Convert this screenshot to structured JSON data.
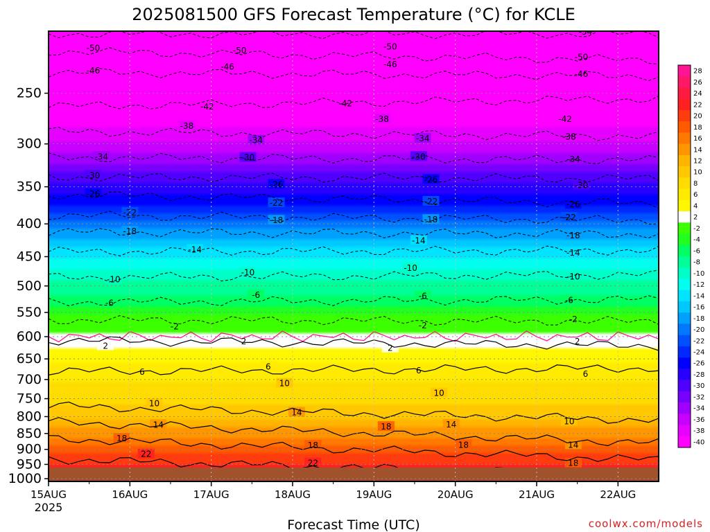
{
  "chart_data": {
    "type": "heatmap",
    "title": "2025081500 GFS Forecast Temperature (°C) for KCLE",
    "xlabel": "Forecast Time (UTC)",
    "ylabel": "",
    "credit": "coolwx.com/models",
    "x_ticks": [
      "15AUG",
      "16AUG",
      "17AUG",
      "18AUG",
      "19AUG",
      "20AUG",
      "21AUG",
      "22AUG"
    ],
    "x_year_label": "2025",
    "y_scale": "log",
    "y_ticks": [
      250,
      300,
      350,
      400,
      450,
      500,
      550,
      600,
      650,
      700,
      750,
      800,
      850,
      900,
      950,
      1000
    ],
    "ylim": [
      1010,
      200
    ],
    "xlim_days": [
      0,
      7.5
    ],
    "grid": true,
    "colorbar": {
      "placement": "right",
      "labels_top": [
        "28",
        "26",
        "24",
        "22",
        "20",
        "18",
        "16",
        "14",
        "12",
        "10",
        "8",
        "6",
        "4",
        "2"
      ],
      "labels_bottom": [
        "-2",
        "-4",
        "-6",
        "-8",
        "-10",
        "-12",
        "-14",
        "-16",
        "-18",
        "-20",
        "-22",
        "-24",
        "-26",
        "-28",
        "-30",
        "-32",
        "-34",
        "-36",
        "-38",
        "-40"
      ],
      "colors_top": [
        "#ff1493",
        "#ff1868",
        "#ff1a40",
        "#ff2020",
        "#ff3c10",
        "#ff5a00",
        "#ff7800",
        "#ff9600",
        "#ffb400",
        "#ffc800",
        "#ffdc00",
        "#ffeb00",
        "#fff700",
        "#ffffff"
      ],
      "colors_bottom": [
        "#3cff00",
        "#20ff20",
        "#00ff60",
        "#00ff96",
        "#00ffc8",
        "#00ffee",
        "#00e4ff",
        "#00c8ff",
        "#00a0ff",
        "#0078ff",
        "#0050ff",
        "#0028ff",
        "#0000ff",
        "#2800ff",
        "#5000ff",
        "#7800ff",
        "#a000ff",
        "#c800ff",
        "#e600ff",
        "#ff00ff"
      ]
    },
    "surface_color": "#a0522d",
    "freezing_color": "#ff1493",
    "contours": [
      {
        "level": -54,
        "p_start": 202,
        "p_end": 202,
        "labels": [
          [
            6.6,
            201
          ]
        ]
      },
      {
        "level": -50,
        "p_start": 215,
        "p_end": 222,
        "labels": [
          [
            0.55,
            213
          ],
          [
            2.35,
            215
          ],
          [
            4.2,
            212
          ],
          [
            6.55,
            220
          ]
        ]
      },
      {
        "level": -46,
        "p_start": 232,
        "p_end": 235,
        "labels": [
          [
            0.55,
            231
          ],
          [
            2.2,
            228
          ],
          [
            4.2,
            226
          ],
          [
            6.55,
            234
          ]
        ]
      },
      {
        "level": -42,
        "p_start": 262,
        "p_end": 255,
        "labels": [
          [
            1.95,
            263
          ],
          [
            3.65,
            260
          ],
          [
            6.35,
            275
          ]
        ]
      },
      {
        "level": -38,
        "p_start": 287,
        "p_end": 292,
        "labels": [
          [
            1.7,
            282
          ],
          [
            4.1,
            275
          ],
          [
            6.4,
            293
          ]
        ]
      },
      {
        "level": -34,
        "p_start": 315,
        "p_end": 318,
        "labels": [
          [
            0.65,
            315
          ],
          [
            2.55,
            297
          ],
          [
            4.6,
            295
          ],
          [
            6.45,
            318
          ]
        ]
      },
      {
        "level": -30,
        "p_start": 338,
        "p_end": 340,
        "labels": [
          [
            0.55,
            337
          ],
          [
            2.45,
            316
          ],
          [
            4.55,
            315
          ],
          [
            6.55,
            349
          ]
        ]
      },
      {
        "level": -26,
        "p_start": 360,
        "p_end": 372,
        "labels": [
          [
            0.55,
            360
          ],
          [
            2.8,
            348
          ],
          [
            4.7,
            342
          ],
          [
            6.45,
            374
          ]
        ]
      },
      {
        "level": -22,
        "p_start": 388,
        "p_end": 395,
        "labels": [
          [
            1.0,
            385
          ],
          [
            2.8,
            372
          ],
          [
            4.7,
            370
          ],
          [
            6.4,
            392
          ]
        ]
      },
      {
        "level": -18,
        "p_start": 412,
        "p_end": 415,
        "labels": [
          [
            1.0,
            412
          ],
          [
            2.8,
            396
          ],
          [
            4.7,
            395
          ],
          [
            6.45,
            418
          ]
        ]
      },
      {
        "level": -14,
        "p_start": 442,
        "p_end": 440,
        "labels": [
          [
            1.8,
            440
          ],
          [
            4.55,
            426
          ],
          [
            6.45,
            445
          ]
        ]
      },
      {
        "level": -10,
        "p_start": 485,
        "p_end": 480,
        "labels": [
          [
            0.8,
            490
          ],
          [
            2.45,
            478
          ],
          [
            4.45,
            470
          ],
          [
            6.45,
            485
          ]
        ]
      },
      {
        "level": -6,
        "p_start": 530,
        "p_end": 525,
        "labels": [
          [
            0.75,
            533
          ],
          [
            2.55,
            518
          ],
          [
            4.6,
            520
          ],
          [
            6.4,
            528
          ]
        ]
      },
      {
        "level": -2,
        "p_start": 565,
        "p_end": 568,
        "labels": [
          [
            1.55,
            580
          ],
          [
            4.6,
            578
          ],
          [
            6.45,
            565
          ]
        ]
      },
      {
        "level": 2,
        "p_start": 608,
        "p_end": 620,
        "labels": [
          [
            0.7,
            622
          ],
          [
            2.4,
            612
          ],
          [
            4.2,
            627
          ],
          [
            6.5,
            612
          ]
        ]
      },
      {
        "level": 6,
        "p_start": 680,
        "p_end": 672,
        "labels": [
          [
            1.15,
            683
          ],
          [
            2.7,
            670
          ],
          [
            4.55,
            680
          ],
          [
            6.6,
            688
          ]
        ]
      },
      {
        "level": 10,
        "p_start": 770,
        "p_end": 810,
        "labels": [
          [
            1.3,
            765
          ],
          [
            2.9,
            712
          ],
          [
            4.8,
            737
          ],
          [
            6.4,
            816
          ]
        ]
      },
      {
        "level": 14,
        "p_start": 815,
        "p_end": 880,
        "labels": [
          [
            1.35,
            826
          ],
          [
            3.05,
            790
          ],
          [
            4.95,
            825
          ],
          [
            6.45,
            888
          ]
        ]
      },
      {
        "level": 18,
        "p_start": 865,
        "p_end": 935,
        "labels": [
          [
            0.9,
            868
          ],
          [
            3.25,
            890
          ],
          [
            4.15,
            832
          ],
          [
            5.1,
            888
          ],
          [
            6.45,
            948
          ]
        ]
      },
      {
        "level": 22,
        "p_start": 932,
        "p_end": 990,
        "labels": [
          [
            1.2,
            918
          ],
          [
            3.25,
            948
          ]
        ]
      }
    ]
  }
}
